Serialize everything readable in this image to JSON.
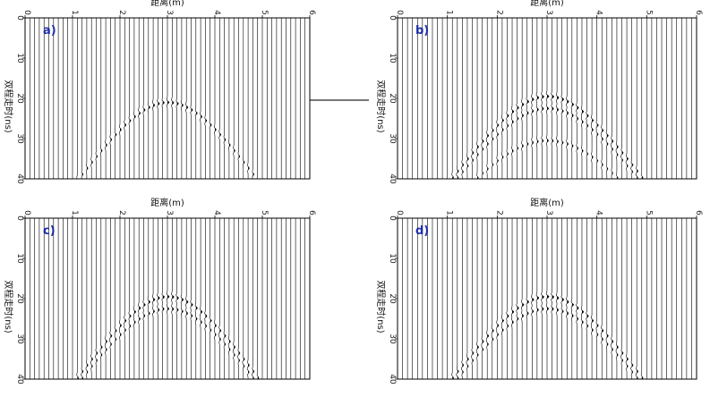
{
  "chart_data": [
    {
      "type": "wiggle-section",
      "panel_label": "a)",
      "xlabel": "距离(m)",
      "ylabel": "双程走时(ns)",
      "xlim": [
        0,
        6
      ],
      "ylim": [
        0,
        40
      ],
      "x_ticks": [
        "0",
        "1",
        "2",
        "3",
        "4",
        "5",
        "6"
      ],
      "y_ticks": [
        "0",
        "10",
        "20",
        "30",
        "40"
      ],
      "trace_spacing_m": 0.1,
      "hyperbolas": [
        {
          "apex_x": 3.0,
          "apex_t": 21,
          "velocity_m_per_ns": 0.11,
          "amplitude": 1.0,
          "x_range": [
            1.0,
            5.1
          ]
        }
      ]
    },
    {
      "type": "wiggle-section",
      "panel_label": "b)",
      "xlabel": "距离(m)",
      "ylabel": "双程走时(ns)",
      "xlim": [
        0,
        6
      ],
      "ylim": [
        0,
        40
      ],
      "x_ticks": [
        "0",
        "1",
        "2",
        "3",
        "4",
        "5",
        "6"
      ],
      "y_ticks": [
        "0",
        "10",
        "20",
        "30",
        "40"
      ],
      "trace_spacing_m": 0.1,
      "hyperbolas": [
        {
          "apex_x": 3.0,
          "apex_t": 19.5,
          "velocity_m_per_ns": 0.11,
          "amplitude": 1.1,
          "x_range": [
            0.8,
            5.2
          ]
        },
        {
          "apex_x": 3.0,
          "apex_t": 22.5,
          "velocity_m_per_ns": 0.11,
          "amplitude": 0.9,
          "x_range": [
            0.9,
            5.0
          ]
        },
        {
          "apex_x": 3.0,
          "apex_t": 30.5,
          "velocity_m_per_ns": 0.11,
          "amplitude": 0.8,
          "x_range": [
            1.4,
            4.6
          ]
        }
      ]
    },
    {
      "type": "wiggle-section",
      "panel_label": "c)",
      "xlabel": "距离(m)",
      "ylabel": "双程走时(ns)",
      "xlim": [
        0,
        6
      ],
      "ylim": [
        0,
        40
      ],
      "x_ticks": [
        "0",
        "1",
        "2",
        "3",
        "4",
        "5",
        "6"
      ],
      "y_ticks": [
        "0",
        "10",
        "20",
        "30",
        "40"
      ],
      "trace_spacing_m": 0.1,
      "hyperbolas": [
        {
          "apex_x": 3.0,
          "apex_t": 19.5,
          "velocity_m_per_ns": 0.11,
          "amplitude": 1.1,
          "x_range": [
            0.5,
            5.3
          ]
        },
        {
          "apex_x": 3.0,
          "apex_t": 22.5,
          "velocity_m_per_ns": 0.11,
          "amplitude": 0.9,
          "x_range": [
            0.6,
            5.2
          ]
        }
      ]
    },
    {
      "type": "wiggle-section",
      "panel_label": "d)",
      "xlabel": "距离(m)",
      "ylabel": "双程走时(ns)",
      "xlim": [
        0,
        6
      ],
      "ylim": [
        0,
        40
      ],
      "x_ticks": [
        "0",
        "1",
        "2",
        "3",
        "4",
        "5",
        "6"
      ],
      "y_ticks": [
        "0",
        "10",
        "20",
        "30",
        "40"
      ],
      "trace_spacing_m": 0.1,
      "hyperbolas": [
        {
          "apex_x": 3.0,
          "apex_t": 19.5,
          "velocity_m_per_ns": 0.11,
          "amplitude": 1.1,
          "x_range": [
            0.6,
            5.4
          ]
        },
        {
          "apex_x": 3.0,
          "apex_t": 22.5,
          "velocity_m_per_ns": 0.11,
          "amplitude": 0.9,
          "x_range": [
            0.7,
            5.3
          ]
        }
      ]
    }
  ]
}
